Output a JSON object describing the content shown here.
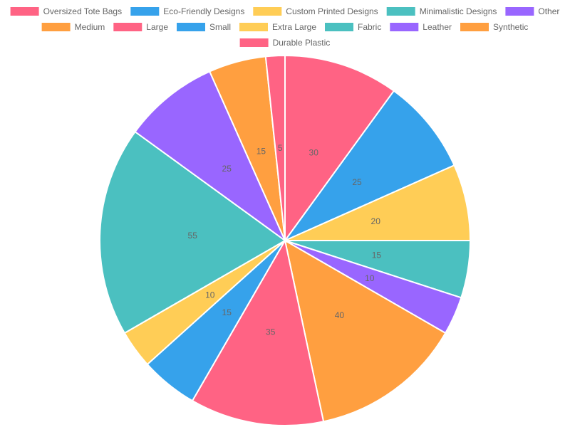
{
  "chart_data": {
    "type": "pie",
    "title": "",
    "legend_position": "top",
    "categories": [
      "Oversized Tote Bags",
      "Eco-Friendly Designs",
      "Custom Printed Designs",
      "Minimalistic Designs",
      "Other",
      "Medium",
      "Large",
      "Small",
      "Extra Large",
      "Fabric",
      "Leather",
      "Synthetic",
      "Durable Plastic"
    ],
    "values": [
      30,
      25,
      20,
      15,
      10,
      40,
      35,
      15,
      10,
      55,
      25,
      15,
      5
    ],
    "colors": [
      "#ff6384",
      "#36a2eb",
      "#ffcd56",
      "#4bc0c0",
      "#9966ff",
      "#ff9f40",
      "#ff6384",
      "#36a2eb",
      "#ffcd56",
      "#4bc0c0",
      "#9966ff",
      "#ff9f40",
      "#ff6384"
    ]
  }
}
